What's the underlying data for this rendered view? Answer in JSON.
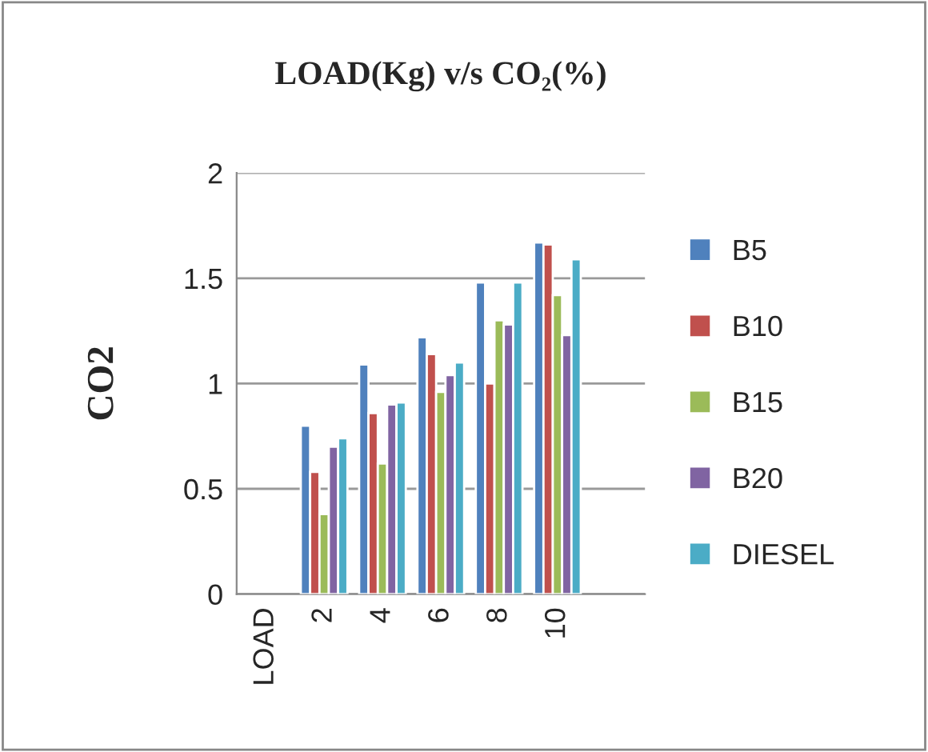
{
  "chart_data": {
    "type": "bar",
    "title": "LOAD(Kg) v/s CO₂(%)",
    "ylabel": "CO2",
    "categories": [
      "LOAD",
      "2",
      "4",
      "6",
      "8",
      "10",
      null
    ],
    "series": [
      {
        "name": "B5",
        "color": "#4f81bd",
        "values": [
          null,
          0.8,
          1.09,
          1.22,
          1.48,
          1.67,
          null
        ]
      },
      {
        "name": "B10",
        "color": "#c0504d",
        "values": [
          null,
          0.58,
          0.86,
          1.14,
          1.0,
          1.66,
          null
        ]
      },
      {
        "name": "B15",
        "color": "#9bbb59",
        "values": [
          null,
          0.38,
          0.62,
          0.96,
          1.3,
          1.42,
          null
        ]
      },
      {
        "name": "B20",
        "color": "#8064a2",
        "values": [
          null,
          0.7,
          0.9,
          1.04,
          1.28,
          1.23,
          null
        ]
      },
      {
        "name": "DIESEL",
        "color": "#4bacc6",
        "values": [
          null,
          0.74,
          0.91,
          1.1,
          1.48,
          1.59,
          null
        ]
      }
    ],
    "ylim": [
      0,
      2
    ],
    "yticks": [
      0,
      0.5,
      1,
      1.5,
      2
    ],
    "grid": "y",
    "legend": "right"
  }
}
